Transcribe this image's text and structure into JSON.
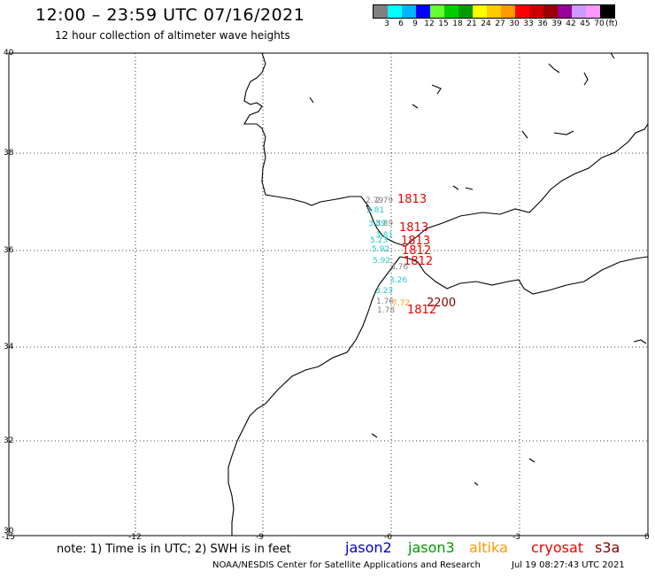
{
  "header": {
    "title": "12:00 – 23:59 UTC 07/16/2021",
    "subtitle": "12 hour collection of altimeter wave heights"
  },
  "colorbar": {
    "colors": [
      "#808080",
      "#00ffff",
      "#00b4ff",
      "#0000ff",
      "#66ff33",
      "#00cc00",
      "#009900",
      "#ffff00",
      "#ffcc00",
      "#ff9900",
      "#ff0000",
      "#cc0000",
      "#990000",
      "#990099",
      "#cc99ff",
      "#ff99ff",
      "#000000"
    ],
    "labels": [
      "3",
      "6",
      "9",
      "12",
      "15",
      "18",
      "21",
      "24",
      "27",
      "30",
      "33",
      "36",
      "39",
      "42",
      "45",
      "70",
      "(ft)"
    ]
  },
  "axes": {
    "lat_labels": [
      "40",
      "38",
      "36",
      "34",
      "32",
      "30"
    ],
    "lon_labels": [
      "-15",
      "-12",
      "-9",
      "-6",
      "-3",
      "0"
    ]
  },
  "observations": [
    {
      "text": "2.79",
      "color": "#808080"
    },
    {
      "text": "2.79",
      "color": "#808080"
    },
    {
      "text": "1813",
      "color": "#ee0000"
    },
    {
      "text": "2.81",
      "color": "#22cccc"
    },
    {
      "text": "3.89",
      "color": "#808080"
    },
    {
      "text": "1813",
      "color": "#ee0000"
    },
    {
      "text": "3.89",
      "color": "#22cccc"
    },
    {
      "text": "3.81",
      "color": "#22cccc"
    },
    {
      "text": "5.23",
      "color": "#22cccc"
    },
    {
      "text": "1813",
      "color": "#ee0000"
    },
    {
      "text": "5.92",
      "color": "#22cccc"
    },
    {
      "text": "1812",
      "color": "#ee0000"
    },
    {
      "text": "5.92",
      "color": "#22cccc"
    },
    {
      "text": "1812",
      "color": "#ee0000"
    },
    {
      "text": "3.76",
      "color": "#808080"
    },
    {
      "text": "3.26",
      "color": "#22cccc"
    },
    {
      "text": "3.23",
      "color": "#22cccc"
    },
    {
      "text": "1.76",
      "color": "#808080"
    },
    {
      "text": "7.72",
      "color": "#ff9900"
    },
    {
      "text": "2200",
      "color": "#880000"
    },
    {
      "text": "1.78",
      "color": "#808080"
    },
    {
      "text": "1812",
      "color": "#ee0000"
    }
  ],
  "footer": {
    "note": "note: 1) Time is in UTC; 2) SWH is in feet",
    "satellites": [
      {
        "name": "jason2",
        "color": "#0000cc"
      },
      {
        "name": "jason3",
        "color": "#009900"
      },
      {
        "name": "altika",
        "color": "#ff9900"
      },
      {
        "name": "cryosat",
        "color": "#ee0000"
      },
      {
        "name": "s3a",
        "color": "#880000"
      }
    ],
    "credit": "NOAA/NESDIS Center for Satellite Applications and Research",
    "timestamp": "Jul 19 08:27:43 UTC 2021"
  }
}
